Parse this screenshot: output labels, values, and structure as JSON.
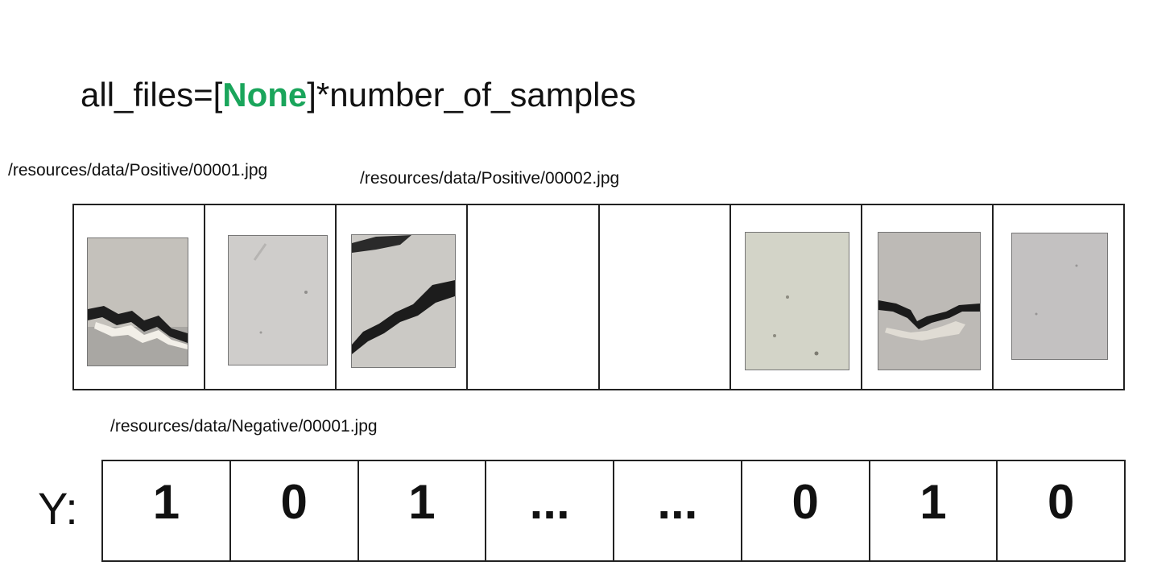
{
  "code": {
    "prefix": "all_files=[",
    "keyword": "None",
    "suffix": "]*number_of_samples"
  },
  "paths": {
    "positive_1": "/resources/data/Positive/00001.jpg",
    "positive_2": "/resources/data/Positive/00002.jpg",
    "negative_1": "/resources/data/Negative/00001.jpg"
  },
  "images": [
    {
      "kind": "crack",
      "color": "#c4c1bb"
    },
    {
      "kind": "plain",
      "color": "#cfcdcb"
    },
    {
      "kind": "crack",
      "color": "#cbc9c5"
    },
    {
      "kind": "empty"
    },
    {
      "kind": "empty"
    },
    {
      "kind": "plain",
      "color": "#d3d4c8"
    },
    {
      "kind": "crack",
      "color": "#bdbab6"
    },
    {
      "kind": "plain",
      "color": "#c3c1c1"
    }
  ],
  "y": {
    "label": "Y:",
    "values": [
      "1",
      "0",
      "1",
      "...",
      "...",
      "0",
      "1",
      "0"
    ]
  }
}
